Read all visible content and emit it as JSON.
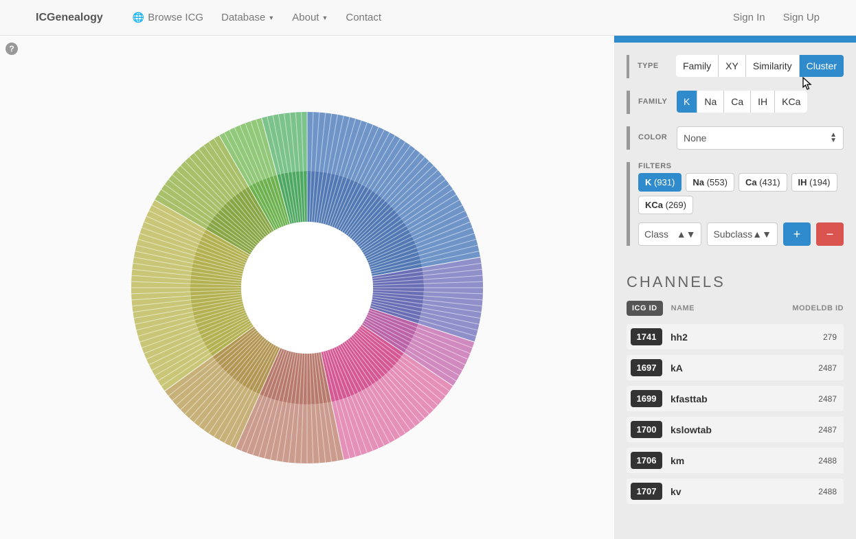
{
  "nav": {
    "brand": "ICGenealogy",
    "links": {
      "browse": "Browse ICG",
      "database": "Database",
      "about": "About",
      "contact": "Contact",
      "signin": "Sign In",
      "signup": "Sign Up"
    }
  },
  "filters": {
    "type": {
      "label": "TYPE",
      "options": [
        "Family",
        "XY",
        "Similarity",
        "Cluster"
      ],
      "active": "Cluster"
    },
    "family": {
      "label": "FAMILY",
      "options": [
        "K",
        "Na",
        "Ca",
        "IH",
        "KCa"
      ],
      "active": "K"
    },
    "color": {
      "label": "COLOR",
      "value": "None"
    },
    "filtersec": {
      "label": "FILTERS",
      "chips": [
        {
          "label": "K",
          "count": 931,
          "active": true
        },
        {
          "label": "Na",
          "count": 553,
          "active": false
        },
        {
          "label": "Ca",
          "count": 431,
          "active": false
        },
        {
          "label": "IH",
          "count": 194,
          "active": false
        },
        {
          "label": "KCa",
          "count": 269,
          "active": false
        }
      ],
      "class_sel": "Class",
      "subclass_sel": "Subclass"
    }
  },
  "channels": {
    "heading": "CHANNELS",
    "head": {
      "id": "ICG ID",
      "name": "NAME",
      "modeldb": "MODELDB ID"
    },
    "rows": [
      {
        "id": "1741",
        "name": "hh2",
        "modeldb": "279"
      },
      {
        "id": "1697",
        "name": "kA",
        "modeldb": "2487"
      },
      {
        "id": "1699",
        "name": "kfasttab",
        "modeldb": "2487"
      },
      {
        "id": "1700",
        "name": "kslowtab",
        "modeldb": "2487"
      },
      {
        "id": "1706",
        "name": "km",
        "modeldb": "2488"
      },
      {
        "id": "1707",
        "name": "kv",
        "modeldb": "2488"
      }
    ]
  },
  "chart": {
    "type": "sunburst",
    "inner_radius": 96,
    "mid_radius": 170,
    "outer_radius": 256,
    "background": "#fafafa",
    "segments": [
      {
        "start": 0,
        "end": 80,
        "inner": "#5279b3",
        "outer": "#6f94c7"
      },
      {
        "start": 80,
        "end": 108,
        "inner": "#6a6eb4",
        "outer": "#8f8fc9"
      },
      {
        "start": 108,
        "end": 124,
        "inner": "#bb63a7",
        "outer": "#d18ac0"
      },
      {
        "start": 124,
        "end": 168,
        "inner": "#d45894",
        "outer": "#e590b8"
      },
      {
        "start": 168,
        "end": 204,
        "inner": "#b77a6d",
        "outer": "#cb9b8d"
      },
      {
        "start": 204,
        "end": 234,
        "inner": "#b29654",
        "outer": "#c7b178"
      },
      {
        "start": 234,
        "end": 300,
        "inner": "#b3b151",
        "outer": "#c9c777"
      },
      {
        "start": 300,
        "end": 330,
        "inner": "#88a646",
        "outer": "#a9c06b"
      },
      {
        "start": 330,
        "end": 345,
        "inner": "#6db24f",
        "outer": "#92c879"
      },
      {
        "start": 345,
        "end": 360,
        "inner": "#4ea862",
        "outer": "#7cc38b"
      }
    ],
    "spokes_per_segment": 18,
    "spoke_width": 1,
    "spoke_opacity": 0.55
  },
  "colors": {
    "accent": "#2f8bcc",
    "danger": "#d9534f",
    "panel": "#ebebeb",
    "nav": "#f8f8f8"
  }
}
